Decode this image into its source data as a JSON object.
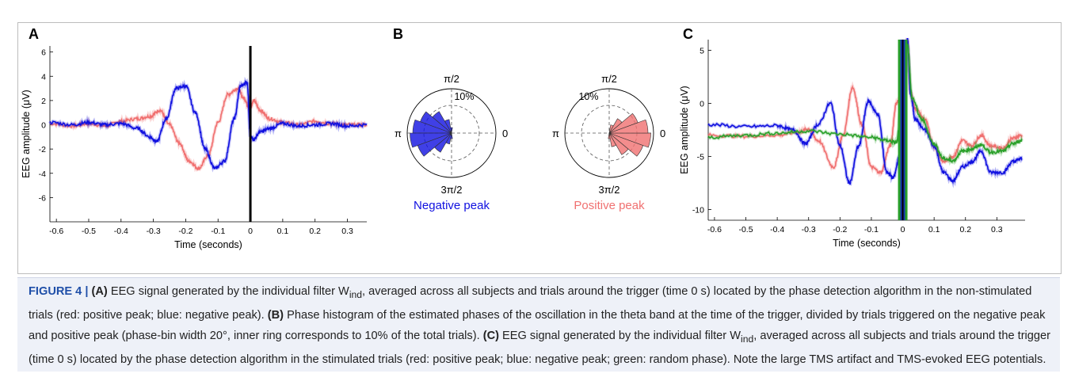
{
  "panel_labels": {
    "a": "A",
    "b": "B",
    "c": "C"
  },
  "colors": {
    "red": "#f07070",
    "blue": "#1010e0",
    "green": "#2aa02a",
    "black": "#000000",
    "fig_label": "#1f4fa8"
  },
  "chart_data": [
    {
      "panel": "A",
      "type": "line",
      "xlabel": "Time (seconds)",
      "ylabel": "EEG amplitude (μV)",
      "xlim": [
        -0.62,
        0.36
      ],
      "ylim": [
        -8,
        6.5
      ],
      "xticks": [
        "-0.6",
        "-0.5",
        "-0.4",
        "-0.3",
        "-0.2",
        "-0.1",
        "0",
        "0.1",
        "0.2",
        "0.3"
      ],
      "xtick_values": [
        -0.6,
        -0.5,
        -0.4,
        -0.3,
        -0.2,
        -0.1,
        0,
        0.1,
        0.2,
        0.3
      ],
      "yticks": [
        "6",
        "4",
        "2",
        "0",
        "-2",
        "-4",
        "-6"
      ],
      "ytick_values": [
        6,
        4,
        2,
        0,
        -2,
        -4,
        -6
      ],
      "trigger_x": 0,
      "series": [
        {
          "color": "red",
          "x": [
            -0.62,
            -0.55,
            -0.5,
            -0.45,
            -0.4,
            -0.35,
            -0.31,
            -0.28,
            -0.25,
            -0.22,
            -0.19,
            -0.16,
            -0.13,
            -0.1,
            -0.07,
            -0.04,
            -0.02,
            -0.005,
            0.0,
            0.01,
            0.03,
            0.06,
            0.1,
            0.15,
            0.2,
            0.25,
            0.3,
            0.36
          ],
          "y": [
            0.1,
            -0.1,
            0.1,
            -0.1,
            0.3,
            0.5,
            0.7,
            1.2,
            0.0,
            -1.5,
            -3.0,
            -3.6,
            -2.5,
            0.2,
            2.5,
            3.0,
            2.2,
            1.5,
            1.4,
            2.0,
            1.2,
            0.5,
            0.2,
            0.0,
            0.3,
            0.1,
            0.0,
            0.0
          ]
        },
        {
          "color": "blue",
          "x": [
            -0.62,
            -0.55,
            -0.5,
            -0.45,
            -0.4,
            -0.35,
            -0.31,
            -0.29,
            -0.26,
            -0.23,
            -0.2,
            -0.17,
            -0.14,
            -0.11,
            -0.08,
            -0.05,
            -0.03,
            -0.01,
            0.0,
            0.01,
            0.03,
            0.06,
            0.1,
            0.15,
            0.2,
            0.25,
            0.3,
            0.36
          ],
          "y": [
            0.2,
            0.0,
            0.2,
            0.0,
            0.1,
            -0.3,
            -1.0,
            -1.4,
            0.5,
            3.0,
            3.2,
            1.0,
            -2.0,
            -3.6,
            -3.0,
            0.5,
            3.2,
            3.5,
            -1.0,
            -1.2,
            -0.6,
            -0.3,
            0.1,
            -0.1,
            0.0,
            0.1,
            -0.1,
            0.0
          ]
        }
      ]
    },
    {
      "panel": "B",
      "type": "polar-histogram",
      "angle_labels": {
        "top": "π/2",
        "right": "0",
        "left": "π",
        "bottom": "3π/2"
      },
      "ring_label": "10%",
      "bin_width_deg": 20,
      "plots": [
        {
          "label": "Negative peak",
          "color": "blue",
          "bins_center_deg": [
            90,
            110,
            130,
            150,
            170,
            190,
            210,
            230,
            250,
            270
          ],
          "bins_percent": [
            2,
            5,
            9,
            12,
            14,
            15,
            13,
            8,
            4,
            2
          ]
        },
        {
          "label": "Positive peak",
          "color": "red",
          "bins_center_deg": [
            270,
            290,
            310,
            330,
            350,
            10,
            30,
            50,
            70
          ],
          "bins_percent": [
            2,
            5,
            9,
            13,
            15,
            14,
            11,
            6,
            3
          ]
        }
      ]
    },
    {
      "panel": "C",
      "type": "line",
      "xlabel": "Time (seconds)",
      "ylabel": "EEG amplitude (μV)",
      "xlim": [
        -0.62,
        0.39
      ],
      "ylim": [
        -11,
        6
      ],
      "xticks": [
        "-0.6",
        "-0.5",
        "-0.4",
        "-0.3",
        "-0.2",
        "-0.1",
        "0",
        "0.1",
        "0.2",
        "0.3"
      ],
      "xtick_values": [
        -0.6,
        -0.5,
        -0.4,
        -0.3,
        -0.2,
        -0.1,
        0,
        0.1,
        0.2,
        0.3
      ],
      "yticks": [
        "5",
        "0",
        "-5",
        "-10"
      ],
      "ytick_values": [
        5,
        0,
        -5,
        -10
      ],
      "trigger_x": 0,
      "series": [
        {
          "color": "red",
          "x": [
            -0.62,
            -0.5,
            -0.4,
            -0.33,
            -0.3,
            -0.27,
            -0.22,
            -0.19,
            -0.16,
            -0.13,
            -0.1,
            -0.07,
            -0.04,
            -0.02,
            -0.01,
            0.0,
            0.015,
            0.025,
            0.04,
            0.07,
            0.1,
            0.13,
            0.16,
            0.19,
            0.22,
            0.25,
            0.28,
            0.32,
            0.35,
            0.38
          ],
          "y": [
            -3.0,
            -3.1,
            -3.0,
            -2.7,
            -2.4,
            -3.5,
            -6.0,
            -3.0,
            1.5,
            -2.0,
            -6.0,
            -6.5,
            -4.0,
            0.0,
            0.5,
            4.0,
            6.0,
            1.0,
            -0.5,
            -1.5,
            -4.0,
            -5.5,
            -5.0,
            -3.5,
            -4.0,
            -3.0,
            -4.0,
            -4.2,
            -3.3,
            -3.0
          ]
        },
        {
          "color": "blue",
          "x": [
            -0.62,
            -0.5,
            -0.4,
            -0.35,
            -0.31,
            -0.27,
            -0.23,
            -0.2,
            -0.17,
            -0.14,
            -0.11,
            -0.08,
            -0.05,
            -0.03,
            -0.01,
            0.0,
            0.015,
            0.025,
            0.04,
            0.07,
            0.1,
            0.13,
            0.16,
            0.19,
            0.22,
            0.25,
            0.28,
            0.32,
            0.35,
            0.38
          ],
          "y": [
            -2.0,
            -2.2,
            -2.1,
            -2.5,
            -3.8,
            -2.0,
            0.0,
            -4.0,
            -7.5,
            -4.0,
            0.2,
            -1.0,
            -6.5,
            -7.0,
            -5.0,
            3.0,
            6.0,
            0.8,
            -1.5,
            -2.5,
            -4.0,
            -6.5,
            -7.3,
            -6.0,
            -5.5,
            -4.5,
            -6.5,
            -6.5,
            -5.5,
            -5.2
          ]
        },
        {
          "color": "green",
          "x": [
            -0.62,
            -0.5,
            -0.4,
            -0.3,
            -0.2,
            -0.1,
            -0.05,
            -0.02,
            0.0,
            0.015,
            0.03,
            0.06,
            0.1,
            0.13,
            0.16,
            0.19,
            0.22,
            0.25,
            0.28,
            0.32,
            0.35,
            0.38
          ],
          "y": [
            -3.2,
            -3.0,
            -2.8,
            -2.6,
            -2.9,
            -3.2,
            -3.5,
            -3.7,
            2.0,
            5.5,
            0.5,
            -1.5,
            -3.8,
            -5.2,
            -5.4,
            -4.5,
            -4.3,
            -3.9,
            -4.6,
            -4.5,
            -3.8,
            -3.5
          ]
        }
      ]
    }
  ],
  "caption": {
    "fig_label": "FIGURE 4 |",
    "part_a_label": "(A)",
    "part_a_pre": "EEG signal generated by the individual filter W",
    "part_a_sub": "ind",
    "part_a_post": ", averaged across all subjects and trials around the trigger (time 0 s) located by the phase detection algorithm in the non-stimulated trials (red: positive peak; blue: negative peak).",
    "part_b_label": "(B)",
    "part_b_text": "Phase histogram of the estimated phases of the oscillation in the theta band at the time of the trigger, divided by trials triggered on the negative peak and positive peak (phase-bin width 20°, inner ring corresponds to 10% of the total trials).",
    "part_c_label": "(C)",
    "part_c_pre": "EEG signal generated by the individual filter W",
    "part_c_sub": "ind",
    "part_c_post": ", averaged across all subjects and trials around the trigger (time 0 s) located by the phase detection algorithm in the stimulated trials (red: positive peak; blue: negative peak; green: random phase). Note the large TMS artifact and TMS-evoked EEG potentials."
  }
}
